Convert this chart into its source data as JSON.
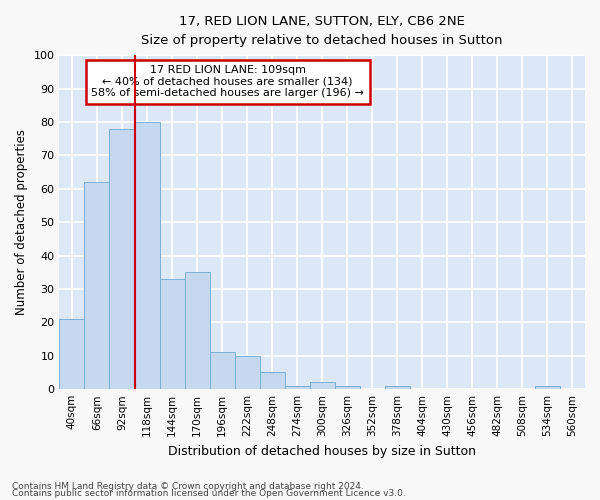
{
  "title1": "17, RED LION LANE, SUTTON, ELY, CB6 2NE",
  "title2": "Size of property relative to detached houses in Sutton",
  "xlabel": "Distribution of detached houses by size in Sutton",
  "ylabel": "Number of detached properties",
  "categories": [
    "40sqm",
    "66sqm",
    "92sqm",
    "118sqm",
    "144sqm",
    "170sqm",
    "196sqm",
    "222sqm",
    "248sqm",
    "274sqm",
    "300sqm",
    "326sqm",
    "352sqm",
    "378sqm",
    "404sqm",
    "430sqm",
    "456sqm",
    "482sqm",
    "508sqm",
    "534sqm",
    "560sqm"
  ],
  "values": [
    21,
    62,
    78,
    80,
    33,
    35,
    11,
    10,
    5,
    1,
    2,
    1,
    0,
    1,
    0,
    0,
    0,
    0,
    0,
    1,
    0
  ],
  "bar_color": "#c5d8f0",
  "bar_edgecolor": "#7bafd4",
  "bg_color": "#dce8f5",
  "grid_color": "#ffffff",
  "annotation_text1": "17 RED LION LANE: 109sqm",
  "annotation_text2": "← 40% of detached houses are smaller (134)",
  "annotation_text3": "58% of semi-detached houses are larger (196) →",
  "annotation_box_color": "#ffffff",
  "annotation_box_edgecolor": "#cc0000",
  "vline_color": "#cc0000",
  "footer1": "Contains HM Land Registry data © Crown copyright and database right 2024.",
  "footer2": "Contains public sector information licensed under the Open Government Licence v3.0.",
  "ylim": [
    0,
    100
  ],
  "fig_bg": "#f8f8f8"
}
